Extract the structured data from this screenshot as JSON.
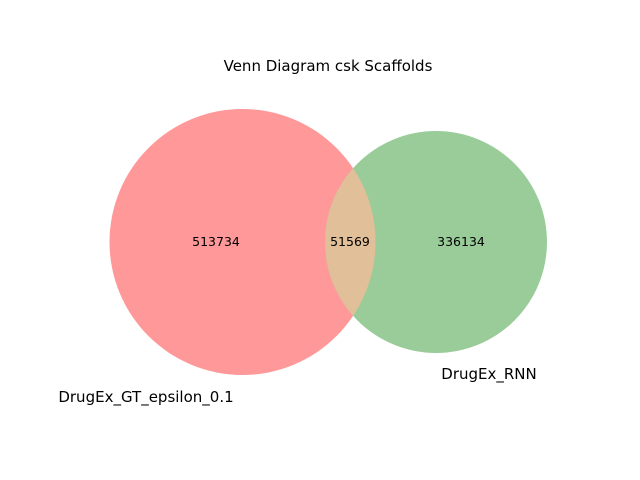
{
  "title": "Venn Diagram csk Scaffolds",
  "sets": [
    {
      "name": "DrugEx_GT_epsilon_0.1",
      "color": "#ff9999"
    },
    {
      "name": "DrugEx_RNN",
      "color": "#99cc99"
    }
  ],
  "overlap_color": "#e0bf99",
  "regions": {
    "only_a": "513734",
    "both": "51569",
    "only_b": "336134"
  }
}
